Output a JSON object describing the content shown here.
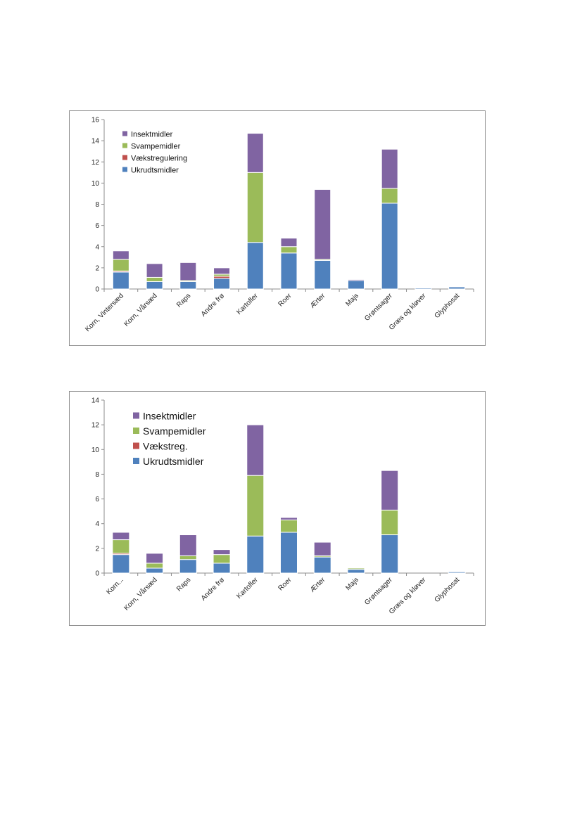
{
  "chart_data": [
    {
      "type": "bar",
      "stacked": true,
      "categories": [
        "Korn, Vintersæd",
        "Korn, Vårsæd",
        "Raps",
        "Andre frø",
        "Kartofler",
        "Roer",
        "Ærter",
        "Majs",
        "Grøntsager",
        "Græs og kløver",
        "Glyphosat"
      ],
      "series": [
        {
          "name": "Ukrudtsmidler",
          "color": "#4f81bd",
          "values": [
            1.6,
            0.7,
            0.7,
            1.0,
            4.4,
            3.4,
            2.7,
            0.8,
            8.1,
            0.1,
            0.2
          ]
        },
        {
          "name": "Vækstregulering",
          "color": "#c0504d",
          "values": [
            0.1,
            0.0,
            0.0,
            0.2,
            0.0,
            0.0,
            0.0,
            0.0,
            0.0,
            0.0,
            0.0
          ]
        },
        {
          "name": "Svampemidler",
          "color": "#9bbb59",
          "values": [
            1.1,
            0.4,
            0.1,
            0.2,
            6.6,
            0.6,
            0.1,
            0.0,
            1.4,
            0.0,
            0.0
          ]
        },
        {
          "name": "Insektmidler",
          "color": "#8064a2",
          "values": [
            0.8,
            1.3,
            1.7,
            0.6,
            3.7,
            0.8,
            6.6,
            0.1,
            3.7,
            0.0,
            0.0
          ]
        }
      ],
      "legend_order": [
        "Insektmidler",
        "Svampemidler",
        "Vækstregulering",
        "Ukrudtsmidler"
      ],
      "legend_position": "top-left",
      "ylim": [
        0,
        16
      ],
      "yticks": [
        "0",
        "2",
        "4",
        "6",
        "8",
        "10",
        "12",
        "14",
        "16"
      ],
      "grid": false
    },
    {
      "type": "bar",
      "stacked": true,
      "categories": [
        "Korn...",
        "Korn, Vårsæd",
        "Raps",
        "Andre frø",
        "Kartofler",
        "Roer",
        "Ærter",
        "Majs",
        "Grøntsager",
        "Græs og kløver",
        "Glyphosat"
      ],
      "series": [
        {
          "name": "Ukrudtsmidler",
          "color": "#4f81bd",
          "values": [
            1.5,
            0.4,
            1.1,
            0.8,
            3.0,
            3.3,
            1.3,
            0.3,
            3.1,
            0.0,
            0.1
          ]
        },
        {
          "name": "Vækstreg.",
          "color": "#c0504d",
          "values": [
            0.1,
            0.0,
            0.0,
            0.0,
            0.0,
            0.0,
            0.0,
            0.0,
            0.0,
            0.0,
            0.0
          ]
        },
        {
          "name": "Svampemidler",
          "color": "#9bbb59",
          "values": [
            1.1,
            0.4,
            0.3,
            0.7,
            4.9,
            1.0,
            0.1,
            0.1,
            2.0,
            0.0,
            0.0
          ]
        },
        {
          "name": "Insektmidler",
          "color": "#8064a2",
          "values": [
            0.6,
            0.8,
            1.7,
            0.4,
            4.1,
            0.2,
            1.1,
            0.0,
            3.2,
            0.0,
            0.0
          ]
        }
      ],
      "legend_order": [
        "Insektmidler",
        "Svampemidler",
        "Vækstreg.",
        "Ukrudtsmidler"
      ],
      "legend_position": "top-left",
      "ylim": [
        0,
        14
      ],
      "yticks": [
        "0",
        "2",
        "4",
        "6",
        "8",
        "10",
        "12",
        "14"
      ],
      "grid": false
    }
  ]
}
